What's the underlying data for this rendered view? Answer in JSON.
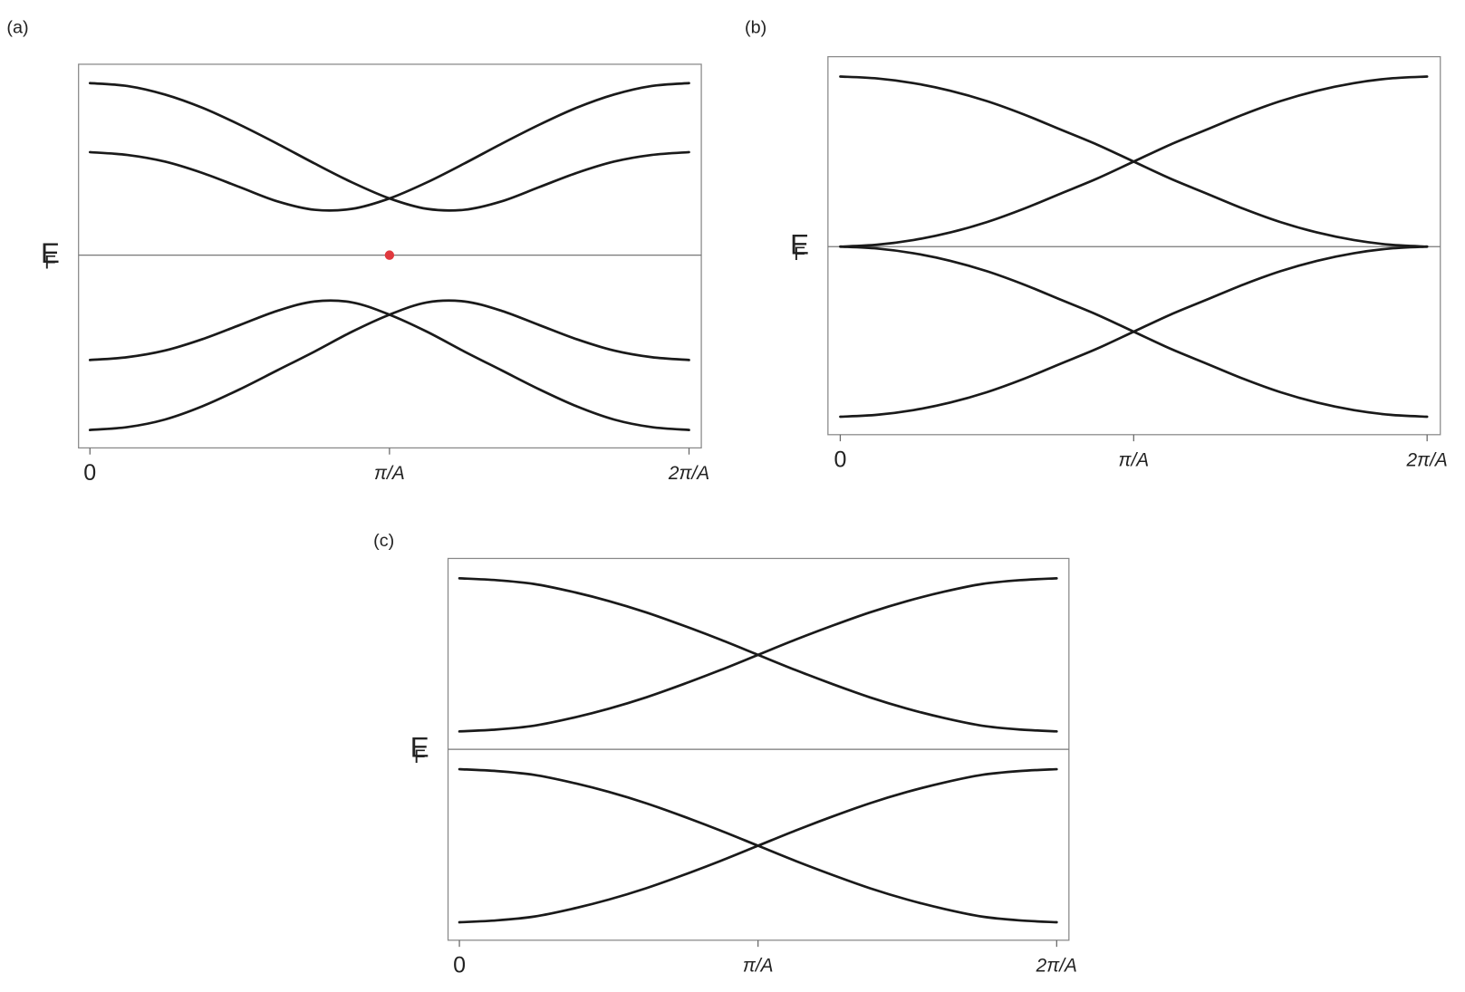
{
  "chart_data": [
    {
      "type": "line",
      "title": "(a)",
      "x": [
        0,
        0.125,
        0.25,
        0.375,
        0.5,
        0.625,
        0.75,
        0.875,
        1,
        1.125,
        1.25,
        1.375,
        1.5,
        1.625,
        1.75,
        1.875,
        2
      ],
      "series": [
        {
          "color": "#1a1a1a",
          "values": [
            1.82,
            1.79,
            1.7,
            1.56,
            1.38,
            1.18,
            0.97,
            0.77,
            0.6,
            0.49,
            0.48,
            0.57,
            0.72,
            0.87,
            0.99,
            1.06,
            1.09
          ]
        },
        {
          "color": "#1a1a1a",
          "values": [
            1.09,
            1.06,
            0.99,
            0.87,
            0.72,
            0.57,
            0.48,
            0.49,
            0.6,
            0.77,
            0.97,
            1.18,
            1.38,
            1.56,
            1.7,
            1.79,
            1.82
          ]
        },
        {
          "color": "#1a1a1a",
          "values": [
            -1.11,
            -1.08,
            -1.01,
            -0.89,
            -0.74,
            -0.59,
            -0.49,
            -0.5,
            -0.63,
            -0.81,
            -1.02,
            -1.22,
            -1.42,
            -1.6,
            -1.74,
            -1.82,
            -1.85
          ]
        },
        {
          "color": "#1a1a1a",
          "values": [
            -1.85,
            -1.82,
            -1.74,
            -1.6,
            -1.42,
            -1.22,
            -1.02,
            -0.81,
            -0.63,
            -0.5,
            -0.49,
            -0.59,
            -0.74,
            -0.89,
            -1.01,
            -1.08,
            -1.11
          ]
        }
      ],
      "xlim": [
        -0.038,
        2.041
      ],
      "ylim": [
        -2.04,
        2.02
      ],
      "xticks": [
        0,
        {
          "value": 1,
          "label": "π/A"
        },
        {
          "value": 2,
          "label": "2π/A"
        }
      ],
      "fermi_level": 0,
      "fermi_label": {
        "text": "E",
        "subscript": "F"
      },
      "marker": {
        "x": 1,
        "y": 0,
        "color": "#e0393e"
      }
    },
    {
      "type": "line",
      "title": "(b)",
      "x": [
        0,
        0.125,
        0.25,
        0.375,
        0.5,
        0.625,
        0.75,
        0.875,
        1,
        1.125,
        1.25,
        1.375,
        1.5,
        1.625,
        1.75,
        1.875,
        2
      ],
      "series": [
        {
          "color": "#1a1a1a",
          "values": [
            1.8,
            1.78,
            1.73,
            1.65,
            1.54,
            1.4,
            1.24,
            1.08,
            0.9,
            0.72,
            0.56,
            0.4,
            0.26,
            0.15,
            0.07,
            0.02,
            0
          ]
        },
        {
          "color": "#1a1a1a",
          "values": [
            0,
            0.02,
            0.07,
            0.15,
            0.26,
            0.4,
            0.56,
            0.72,
            0.9,
            1.08,
            1.24,
            1.4,
            1.54,
            1.65,
            1.73,
            1.78,
            1.8
          ]
        },
        {
          "color": "#1a1a1a",
          "values": [
            -1.8,
            -1.78,
            -1.73,
            -1.65,
            -1.54,
            -1.4,
            -1.24,
            -1.08,
            -0.9,
            -0.72,
            -0.56,
            -0.4,
            -0.26,
            -0.15,
            -0.07,
            -0.02,
            0
          ]
        },
        {
          "color": "#1a1a1a",
          "values": [
            0,
            -0.02,
            -0.07,
            -0.15,
            -0.26,
            -0.4,
            -0.56,
            -0.72,
            -0.9,
            -1.08,
            -1.24,
            -1.4,
            -1.54,
            -1.65,
            -1.73,
            -1.78,
            -1.8
          ]
        }
      ],
      "xlim": [
        -0.042,
        2.045
      ],
      "ylim": [
        -1.99,
        2.01
      ],
      "xticks": [
        0,
        {
          "value": 1,
          "label": "π/A"
        },
        {
          "value": 2,
          "label": "2π/A"
        }
      ],
      "fermi_level": 0,
      "fermi_label": {
        "text": "E",
        "subscript": "F"
      }
    },
    {
      "type": "line",
      "title": "(c)",
      "x": [
        0,
        0.125,
        0.25,
        0.375,
        0.5,
        0.625,
        0.75,
        0.875,
        1,
        1.125,
        1.25,
        1.375,
        1.5,
        1.625,
        1.75,
        1.875,
        2
      ],
      "series": [
        {
          "color": "#1a1a1a",
          "values": [
            1.81,
            1.79,
            1.75,
            1.67,
            1.57,
            1.45,
            1.31,
            1.16,
            1.0,
            0.84,
            0.69,
            0.55,
            0.43,
            0.33,
            0.25,
            0.21,
            0.19
          ]
        },
        {
          "color": "#1a1a1a",
          "values": [
            0.19,
            0.21,
            0.25,
            0.33,
            0.43,
            0.55,
            0.69,
            0.84,
            1.0,
            1.16,
            1.31,
            1.45,
            1.57,
            1.67,
            1.75,
            1.79,
            1.81
          ]
        },
        {
          "color": "#1a1a1a",
          "values": [
            -1.83,
            -1.81,
            -1.77,
            -1.69,
            -1.59,
            -1.47,
            -1.33,
            -1.18,
            -1.02,
            -0.86,
            -0.71,
            -0.57,
            -0.45,
            -0.35,
            -0.27,
            -0.23,
            -0.21
          ]
        },
        {
          "color": "#1a1a1a",
          "values": [
            -0.21,
            -0.23,
            -0.27,
            -0.35,
            -0.45,
            -0.57,
            -0.71,
            -0.86,
            -1.02,
            -1.18,
            -1.33,
            -1.47,
            -1.59,
            -1.69,
            -1.77,
            -1.81,
            -1.83
          ]
        }
      ],
      "xlim": [
        -0.038,
        2.041
      ],
      "ylim": [
        -2.02,
        2.02
      ],
      "xticks": [
        0,
        {
          "value": 1,
          "label": "π/A"
        },
        {
          "value": 2,
          "label": "2π/A"
        }
      ],
      "fermi_level": 0,
      "fermi_label": {
        "text": "E",
        "subscript": "F"
      }
    }
  ]
}
